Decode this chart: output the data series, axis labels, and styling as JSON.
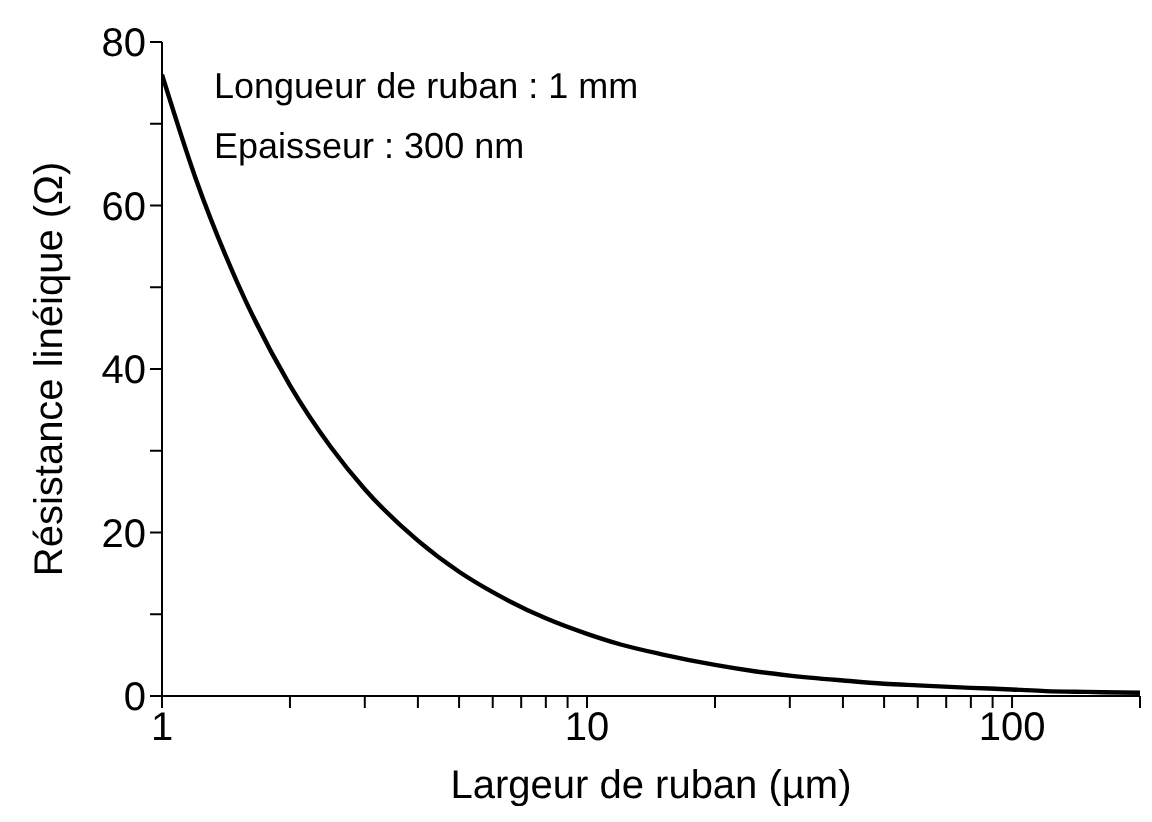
{
  "chart_data": {
    "type": "line",
    "xlabel": "Largeur de ruban (µm)",
    "ylabel": "Résistance linéique (Ω)",
    "annotations": [
      "Longueur de ruban : 1 mm",
      "Epaisseur : 300 nm"
    ],
    "x": [
      1,
      1.2,
      1.5,
      2,
      2.5,
      3,
      4,
      5,
      6,
      8,
      10,
      12,
      15,
      20,
      25,
      30,
      40,
      50,
      60,
      80,
      100,
      120,
      150,
      200
    ],
    "series": [
      {
        "color": "#000000",
        "values": [
          76,
          63.3,
          50.7,
          38,
          30.4,
          25.3,
          19,
          15.2,
          12.7,
          9.5,
          7.6,
          6.3,
          5.1,
          3.8,
          3.0,
          2.5,
          1.9,
          1.5,
          1.3,
          1.0,
          0.8,
          0.6,
          0.5,
          0.4
        ]
      }
    ],
    "log": "x",
    "xlim": [
      1,
      200
    ],
    "xticks": [
      1,
      {
        "value": 2,
        "label": null
      },
      {
        "value": 3,
        "label": null
      },
      {
        "value": 4,
        "label": null
      },
      {
        "value": 5,
        "label": null
      },
      {
        "value": 6,
        "label": null
      },
      {
        "value": 7,
        "label": null
      },
      {
        "value": 8,
        "label": null
      },
      {
        "value": 9,
        "label": null
      },
      10,
      {
        "value": 20,
        "label": null
      },
      {
        "value": 30,
        "label": null
      },
      {
        "value": 40,
        "label": null
      },
      {
        "value": 50,
        "label": null
      },
      {
        "value": 60,
        "label": null
      },
      {
        "value": 70,
        "label": null
      },
      {
        "value": 80,
        "label": null
      },
      {
        "value": 90,
        "label": null
      },
      100,
      {
        "value": 200,
        "label": null
      }
    ],
    "ylim": [
      0,
      80
    ],
    "yticks": [
      0,
      {
        "value": 10,
        "label": null
      },
      20,
      {
        "value": 30,
        "label": null
      },
      40,
      {
        "value": 50,
        "label": null
      },
      60,
      {
        "value": 70,
        "label": null
      },
      80
    ],
    "grid": false,
    "legend": false,
    "marker": "none",
    "line_style": "solid"
  }
}
